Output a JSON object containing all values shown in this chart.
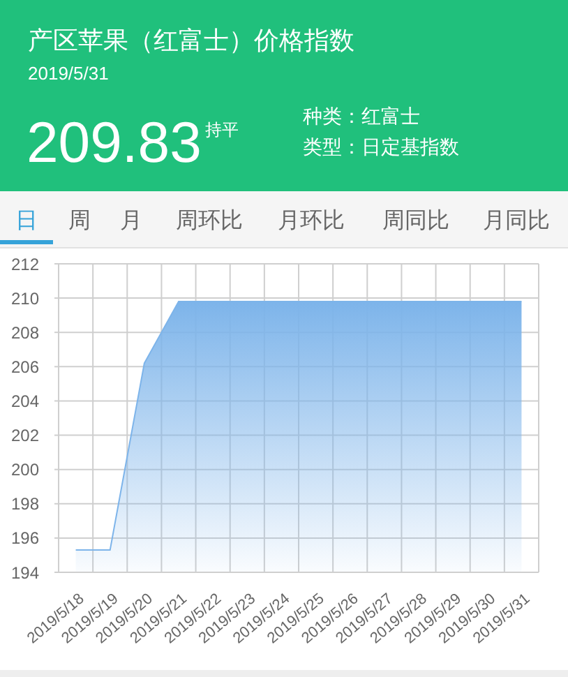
{
  "chart_data": {
    "type": "area",
    "title": "产区苹果（红富士）价格指数",
    "subtitle": "2019/5/31",
    "annotations": [
      "209.83",
      "持平",
      "种类：红富士",
      "类型：日定基指数",
      "日",
      "周",
      "月",
      "周环比",
      "月环比",
      "周同比",
      "月同比"
    ],
    "categories": [
      "2019/5/18",
      "2019/5/19",
      "2019/5/20",
      "2019/5/21",
      "2019/5/22",
      "2019/5/23",
      "2019/5/24",
      "2019/5/25",
      "2019/5/26",
      "2019/5/27",
      "2019/5/28",
      "2019/5/29",
      "2019/5/30",
      "2019/5/31"
    ],
    "values": [
      195.3,
      195.3,
      206.2,
      209.8,
      209.8,
      209.8,
      209.8,
      209.8,
      209.8,
      209.8,
      209.8,
      209.8,
      209.8,
      209.8
    ],
    "color": "#7db4ea",
    "ylim": [
      194,
      212
    ],
    "yticks": [
      194,
      196,
      198,
      200,
      202,
      204,
      206,
      208,
      210,
      212
    ],
    "grid": true
  }
}
